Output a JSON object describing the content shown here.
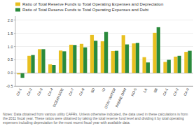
{
  "chart_data": {
    "type": "bar",
    "categories": [
      "CA-1",
      "CA-2",
      "CA-3",
      "CA-4",
      "OCEANSIDE",
      "CA-7",
      "CA-8",
      "SD",
      "IO",
      "OTAY WATER",
      "PADRE DAM",
      "NO-5",
      "LA",
      "SB",
      "CA-1",
      "CA-2",
      "CA-9"
    ],
    "series": [
      {
        "name": "Ratio of Total Reserve Funds to Total Operating Expenses and Depreciation",
        "color": "#E8C020",
        "values": [
          -0.05,
          0.65,
          0.9,
          0.33,
          0.85,
          1.07,
          1.1,
          1.44,
          1.2,
          0.83,
          1.43,
          1.12,
          0.6,
          1.52,
          0.42,
          0.62,
          0.8
        ]
      },
      {
        "name": "Ratio of Total Reserve Funds to Total Operating Expenses and Debt",
        "color": "#2A8A3C",
        "values": [
          -0.18,
          0.68,
          0.9,
          0.3,
          0.82,
          1.06,
          0.97,
          1.22,
          1.55,
          0.84,
          1.08,
          1.14,
          0.4,
          1.73,
          0.5,
          0.65,
          0.84
        ]
      }
    ],
    "ylim": [
      -0.5,
      2.15
    ],
    "yticks": [
      -0.5,
      {
        "value": 0.0,
        "label": "0.0"
      },
      0.5,
      {
        "value": 1.0,
        "label": "1.0"
      },
      1.5,
      {
        "value": 2.0,
        "label": "2.0"
      }
    ],
    "grid": true,
    "annotations": [
      "Notes: Data obtained from various utility CAFRs.  Unless otherwise indicated, the data used in these calculations is from the 2011 fiscal year. These ratios were obtained by taking the total reserve fund level and dividing it by total operating expenses including depreciation for the most recent fiscal year with available data."
    ]
  }
}
